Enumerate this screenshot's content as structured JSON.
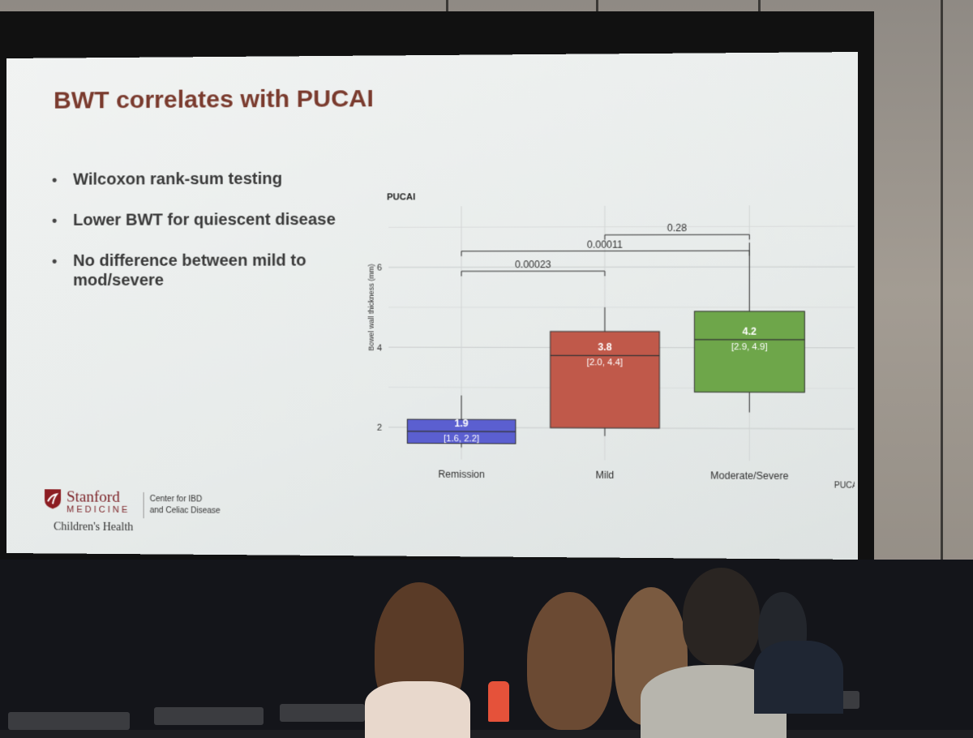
{
  "slide": {
    "title": "BWT correlates with PUCAI",
    "bullets": [
      "Wilcoxon rank-sum testing",
      "Lower BWT for quiescent disease",
      "No difference between mild to mod/severe"
    ]
  },
  "logo": {
    "name": "Stanford",
    "sub": "MEDICINE",
    "child": "Children's Health",
    "center_line1": "Center for IBD",
    "center_line2": "and Celiac Disease"
  },
  "colors": {
    "title": "#7a3b2e",
    "remission": "#5b5fd0",
    "mild": "#c0594a",
    "severe": "#6ea64a"
  },
  "chart_data": {
    "type": "box",
    "legend_title": "PUCAI",
    "xlabel": "PUCAI",
    "ylabel": "Bowel wall thickness (mm)",
    "yticks": [
      2,
      4,
      6
    ],
    "ylim": [
      1.2,
      7.4
    ],
    "categories": [
      "Remission",
      "Mild",
      "Moderate/Severe"
    ],
    "boxes": [
      {
        "category": "Remission",
        "median": 1.9,
        "q1": 1.6,
        "q3": 2.2,
        "whisker_low": 1.5,
        "whisker_high": 2.8,
        "label_median": "1.9",
        "label_iqr": "[1.6, 2.2]",
        "color": "#5b5fd0"
      },
      {
        "category": "Mild",
        "median": 3.8,
        "q1": 2.0,
        "q3": 4.4,
        "whisker_low": 1.8,
        "whisker_high": 5.0,
        "label_median": "3.8",
        "label_iqr": "[2.0, 4.4]",
        "color": "#c0594a"
      },
      {
        "category": "Moderate/Severe",
        "median": 4.2,
        "q1": 2.9,
        "q3": 4.9,
        "whisker_low": 2.4,
        "whisker_high": 6.6,
        "label_median": "4.2",
        "label_iqr": "[2.9, 4.9]",
        "color": "#6ea64a"
      }
    ],
    "comparisons": [
      {
        "from": "Mild",
        "to": "Moderate/Severe",
        "p": "0.28"
      },
      {
        "from": "Remission",
        "to": "Moderate/Severe",
        "p": "0.00011"
      },
      {
        "from": "Remission",
        "to": "Mild",
        "p": "0.00023"
      }
    ]
  }
}
